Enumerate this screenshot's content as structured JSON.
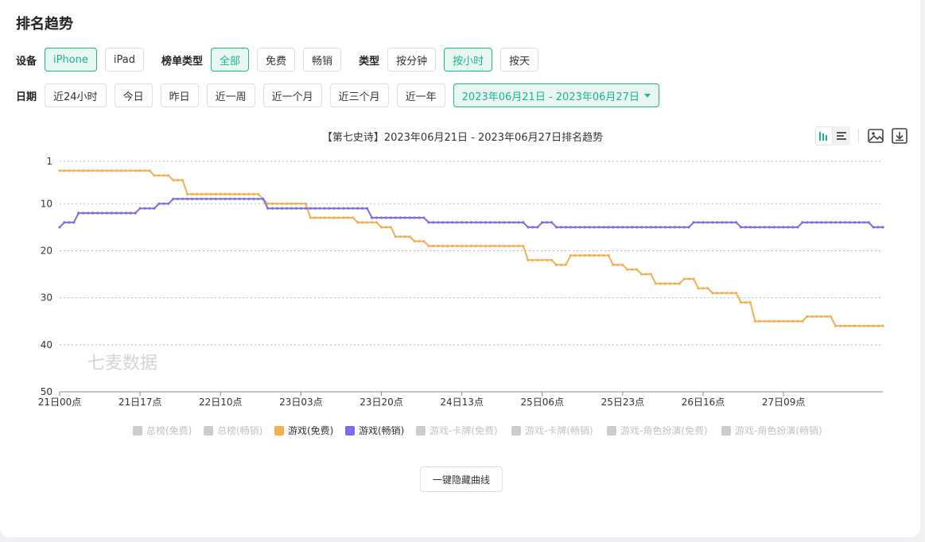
{
  "title": "排名趋势",
  "filters": {
    "device_label": "设备",
    "devices": [
      {
        "label": "iPhone",
        "active": true
      },
      {
        "label": "iPad",
        "active": false
      }
    ],
    "list_type_label": "榜单类型",
    "list_types": [
      {
        "label": "全部",
        "active": true
      },
      {
        "label": "免费",
        "active": false
      },
      {
        "label": "畅销",
        "active": false
      }
    ],
    "type_label": "类型",
    "types": [
      {
        "label": "按分钟",
        "active": false
      },
      {
        "label": "按小时",
        "active": true
      },
      {
        "label": "按天",
        "active": false
      }
    ],
    "date_label": "日期",
    "dates": [
      {
        "label": "近24小时"
      },
      {
        "label": "今日"
      },
      {
        "label": "昨日"
      },
      {
        "label": "近一周"
      },
      {
        "label": "近一个月"
      },
      {
        "label": "近三个月"
      },
      {
        "label": "近一年"
      }
    ],
    "date_range": "2023年06月21日 - 2023年06月27日"
  },
  "hide_button": "一键隐藏曲线",
  "watermark": "七麦数据",
  "colors": {
    "accent": "#1ab394",
    "orange": "#f6ae52",
    "purple": "#7b6cf0",
    "inactive": "#cccccc"
  },
  "chart_data": {
    "type": "line",
    "title": "【第七史诗】2023年06月21日 - 2023年06月27日排名趋势",
    "xlabel": "",
    "ylabel": "",
    "y_reversed": true,
    "ylim": [
      1,
      50
    ],
    "yticks": [
      1,
      10,
      20,
      30,
      40,
      50
    ],
    "x_tick_labels": [
      "21日00点",
      "21日17点",
      "22日10点",
      "23日03点",
      "23日20点",
      "24日13点",
      "25日06点",
      "25日23点",
      "26日16点",
      "27日09点"
    ],
    "x_tick_step_hours": 17,
    "x_start": "21日00点",
    "grid": true,
    "legend_position": "bottom",
    "legend": [
      {
        "name": "总榜(免费)",
        "color": "#cccccc",
        "active": false
      },
      {
        "name": "总榜(畅销)",
        "color": "#cccccc",
        "active": false
      },
      {
        "name": "游戏(免费)",
        "color": "#f6ae52",
        "active": true
      },
      {
        "name": "游戏(畅销)",
        "color": "#7b6cf0",
        "active": true
      },
      {
        "name": "游戏-卡牌(免费)",
        "color": "#cccccc",
        "active": false
      },
      {
        "name": "游戏-卡牌(畅销)",
        "color": "#cccccc",
        "active": false
      },
      {
        "name": "游戏-角色扮演(免费)",
        "color": "#cccccc",
        "active": false
      },
      {
        "name": "游戏-角色扮演(畅销)",
        "color": "#cccccc",
        "active": false
      }
    ],
    "series": [
      {
        "name": "游戏(免费)",
        "color": "#f6ae52",
        "steps": [
          [
            0,
            3
          ],
          [
            20,
            4
          ],
          [
            24,
            5
          ],
          [
            27,
            8
          ],
          [
            43,
            9
          ],
          [
            44,
            10
          ],
          [
            53,
            13
          ],
          [
            63,
            14
          ],
          [
            68,
            15
          ],
          [
            71,
            17
          ],
          [
            75,
            18
          ],
          [
            78,
            19
          ],
          [
            99,
            22
          ],
          [
            105,
            23
          ],
          [
            108,
            21
          ],
          [
            117,
            23
          ],
          [
            120,
            24
          ],
          [
            123,
            25
          ],
          [
            126,
            27
          ],
          [
            132,
            26
          ],
          [
            135,
            28
          ],
          [
            138,
            29
          ],
          [
            144,
            31
          ],
          [
            147,
            35
          ],
          [
            158,
            34
          ],
          [
            164,
            36
          ],
          [
            174,
            36
          ]
        ]
      },
      {
        "name": "游戏(畅销)",
        "color": "#7b6cf0",
        "steps": [
          [
            0,
            15
          ],
          [
            1,
            14
          ],
          [
            4,
            12
          ],
          [
            17,
            11
          ],
          [
            21,
            10
          ],
          [
            24,
            9
          ],
          [
            44,
            11
          ],
          [
            66,
            13
          ],
          [
            78,
            14
          ],
          [
            99,
            15
          ],
          [
            102,
            14
          ],
          [
            105,
            15
          ],
          [
            134,
            14
          ],
          [
            144,
            15
          ],
          [
            157,
            14
          ],
          [
            172,
            15
          ],
          [
            174,
            15
          ]
        ]
      }
    ]
  }
}
